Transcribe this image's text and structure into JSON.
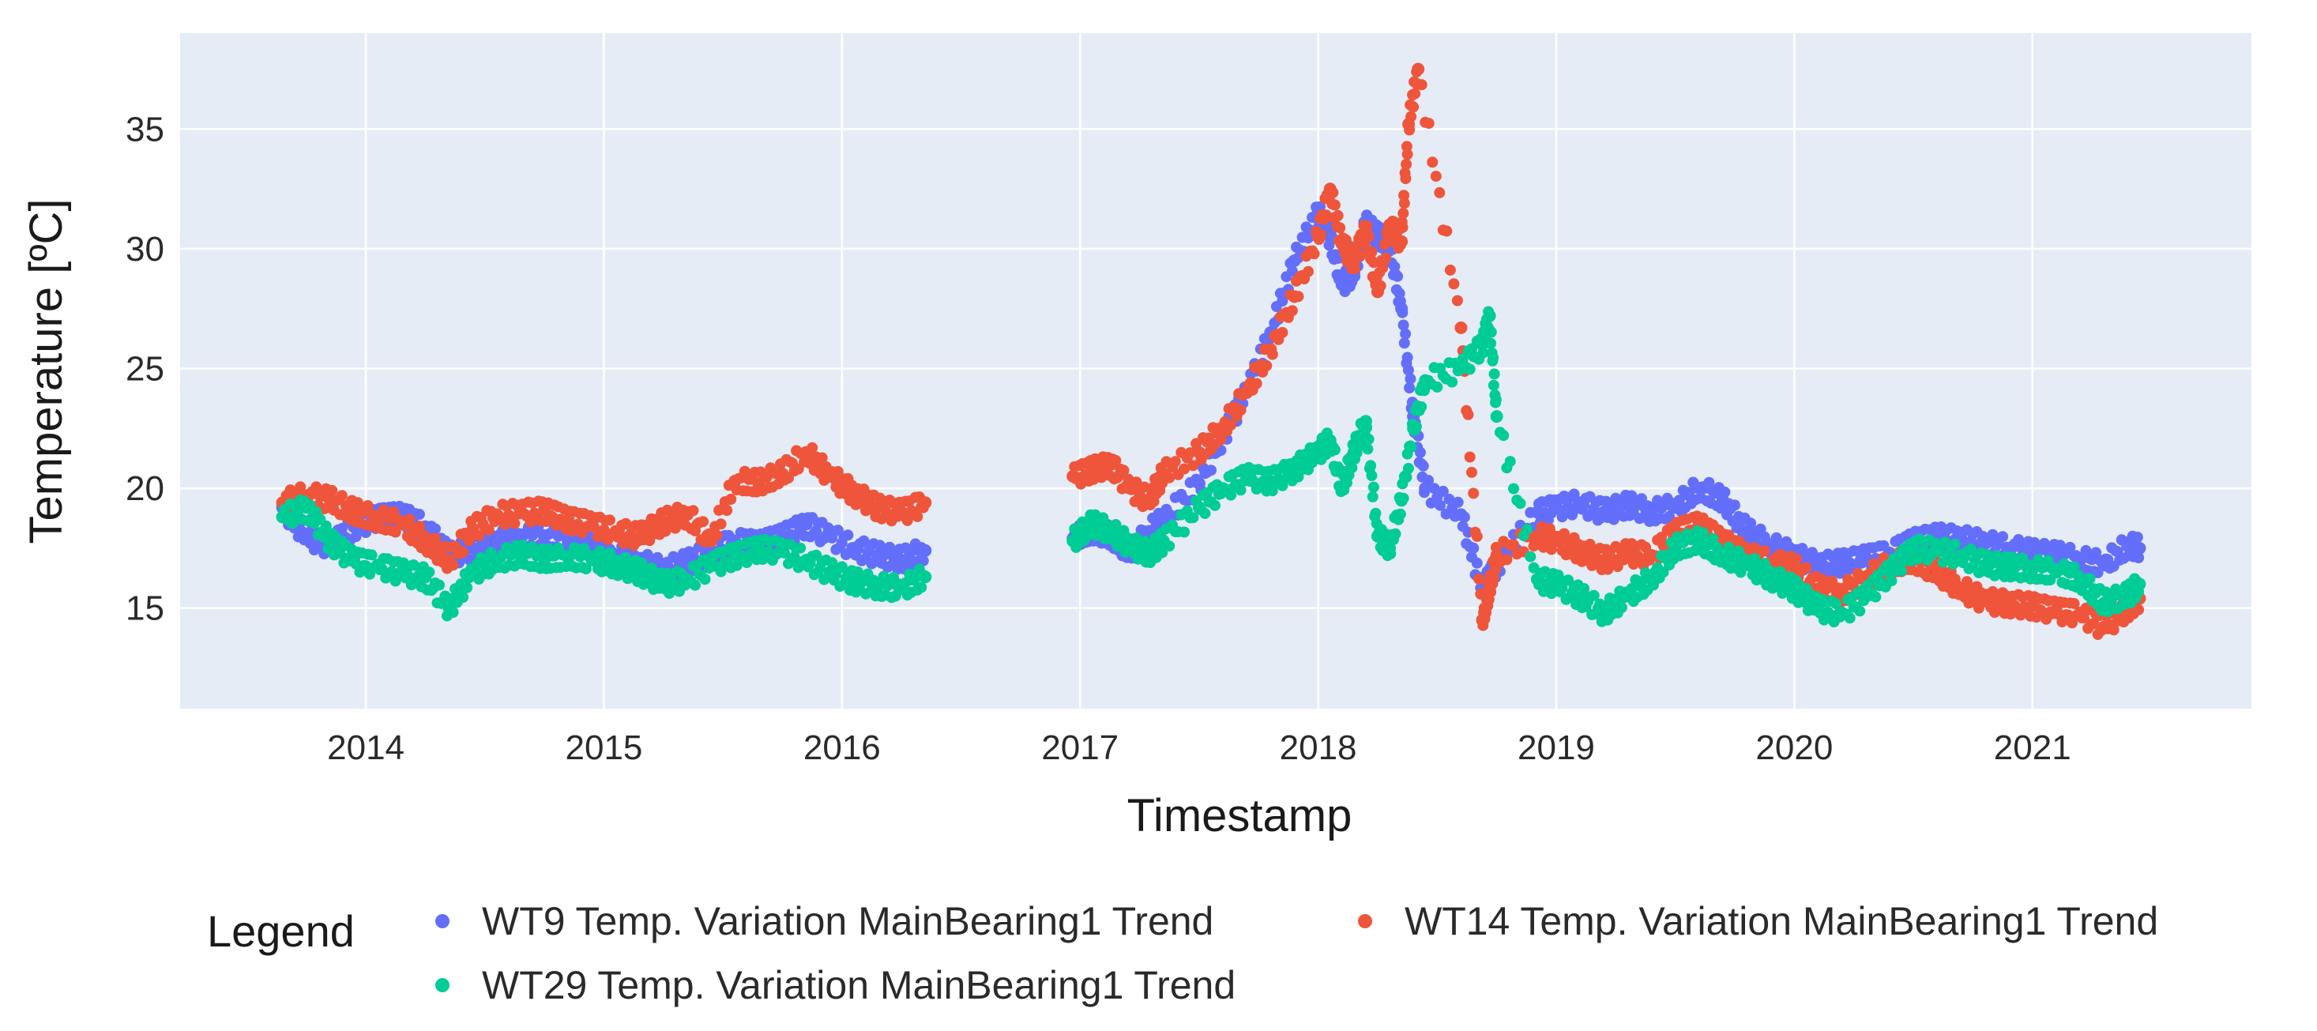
{
  "chart_data": {
    "type": "scatter",
    "title": "",
    "xlabel": "Timestamp",
    "ylabel": "Temperature [ºC]",
    "xlim": [
      2013.22,
      2021.92
    ],
    "ylim": [
      10.8,
      39.0
    ],
    "x_ticks": [
      2014,
      2015,
      2016,
      2017,
      2018,
      2019,
      2020,
      2021
    ],
    "x_tick_labels": [
      "2014",
      "2015",
      "2016",
      "2017",
      "2018",
      "2019",
      "2020",
      "2021"
    ],
    "y_ticks": [
      15,
      20,
      25,
      30,
      35
    ],
    "y_tick_labels": [
      "15",
      "20",
      "25",
      "30",
      "35"
    ],
    "legend_title": "Legend",
    "legend_position": "bottom",
    "grid": true,
    "series": [
      {
        "name": "WT9 Temp. Variation MainBearing1 Trend",
        "color": "#636efa",
        "x": [
          2013.65,
          2013.75,
          2013.85,
          2013.95,
          2014.05,
          2014.15,
          2014.25,
          2014.35,
          2014.45,
          2014.55,
          2014.65,
          2014.75,
          2014.85,
          2014.95,
          2015.05,
          2015.15,
          2015.25,
          2015.35,
          2015.45,
          2015.55,
          2015.65,
          2015.75,
          2015.85,
          2015.95,
          2016.05,
          2016.15,
          2016.25,
          2016.35,
          2016.97,
          2017.05,
          2017.13,
          2017.21,
          2017.29,
          2017.35,
          2017.5,
          2017.6,
          2017.7,
          2017.8,
          2017.9,
          2018.0,
          2018.05,
          2018.1,
          2018.15,
          2018.2,
          2018.25,
          2018.3,
          2018.35,
          2018.4,
          2018.45,
          2018.6,
          2018.69,
          2018.72,
          2018.75,
          2018.92,
          2019.0,
          2019.1,
          2019.2,
          2019.3,
          2019.4,
          2019.5,
          2019.6,
          2019.7,
          2019.8,
          2019.9,
          2020.0,
          2020.1,
          2020.2,
          2020.3,
          2020.4,
          2020.5,
          2020.6,
          2020.7,
          2020.8,
          2020.9,
          2021.0,
          2021.1,
          2021.2,
          2021.3,
          2021.4,
          2021.45
        ],
        "y": [
          19.2,
          18.0,
          17.6,
          18.4,
          18.8,
          18.9,
          18.4,
          17.2,
          17.5,
          17.8,
          17.9,
          18.0,
          17.8,
          17.5,
          17.2,
          16.9,
          16.6,
          16.9,
          17.4,
          17.8,
          17.7,
          18.0,
          18.5,
          18.0,
          17.5,
          17.2,
          17.0,
          17.4,
          17.9,
          18.2,
          18.0,
          17.3,
          18.2,
          18.7,
          20.2,
          22.2,
          24.0,
          26.5,
          29.5,
          31.5,
          30.5,
          28.5,
          29.0,
          31.0,
          30.5,
          30.2,
          27.5,
          23.0,
          20.0,
          18.9,
          15.8,
          16.3,
          16.8,
          19.0,
          19.2,
          19.4,
          19.0,
          19.3,
          19.0,
          19.2,
          20.0,
          19.5,
          18.2,
          17.6,
          17.2,
          16.8,
          16.9,
          17.1,
          17.3,
          17.8,
          18.0,
          17.9,
          17.7,
          17.5,
          17.3,
          17.2,
          17.0,
          16.8,
          17.6,
          17.5
        ]
      },
      {
        "name": "WT14 Temp. Variation MainBearing1 Trend",
        "color": "#ef553b",
        "x": [
          2013.65,
          2013.75,
          2013.85,
          2013.95,
          2014.05,
          2014.15,
          2014.25,
          2014.35,
          2014.45,
          2014.55,
          2014.65,
          2014.75,
          2014.85,
          2014.95,
          2015.05,
          2015.15,
          2015.25,
          2015.35,
          2015.45,
          2015.55,
          2015.65,
          2015.75,
          2015.85,
          2015.95,
          2016.05,
          2016.15,
          2016.25,
          2016.35,
          2016.97,
          2017.05,
          2017.13,
          2017.21,
          2017.29,
          2017.35,
          2017.5,
          2017.6,
          2017.7,
          2017.8,
          2017.9,
          2018.0,
          2018.05,
          2018.1,
          2018.15,
          2018.2,
          2018.25,
          2018.3,
          2018.35,
          2018.38,
          2018.42,
          2018.6,
          2018.69,
          2018.72,
          2018.75,
          2018.92,
          2019.0,
          2019.1,
          2019.2,
          2019.3,
          2019.4,
          2019.5,
          2019.6,
          2019.7,
          2019.8,
          2019.9,
          2020.0,
          2020.1,
          2020.2,
          2020.3,
          2020.4,
          2020.5,
          2020.6,
          2020.7,
          2020.8,
          2020.9,
          2021.0,
          2021.1,
          2021.2,
          2021.3,
          2021.4,
          2021.45
        ],
        "y": [
          19.4,
          19.7,
          19.5,
          19.0,
          18.7,
          18.5,
          17.8,
          17.0,
          18.3,
          18.9,
          19.0,
          19.1,
          18.7,
          18.5,
          18.2,
          18.0,
          18.6,
          18.9,
          17.8,
          20.3,
          20.2,
          20.6,
          21.5,
          20.5,
          19.8,
          19.2,
          19.0,
          19.4,
          20.5,
          20.8,
          21.0,
          20.0,
          19.5,
          20.6,
          21.5,
          22.5,
          24.0,
          25.8,
          28.0,
          30.5,
          32.5,
          30.2,
          29.5,
          30.8,
          28.2,
          31.0,
          30.3,
          35.2,
          37.5,
          26.7,
          14.5,
          15.8,
          17.2,
          18.0,
          17.8,
          17.4,
          17.0,
          17.3,
          17.2,
          18.2,
          18.5,
          17.8,
          17.2,
          16.9,
          16.7,
          15.8,
          15.6,
          16.2,
          16.8,
          17.0,
          16.5,
          15.8,
          15.3,
          15.2,
          15.1,
          14.9,
          14.8,
          14.2,
          15.0,
          15.4
        ]
      },
      {
        "name": "WT29 Temp. Variation MainBearing1 Trend",
        "color": "#00cc96",
        "x": [
          2013.65,
          2013.75,
          2013.85,
          2013.95,
          2014.05,
          2014.15,
          2014.25,
          2014.35,
          2014.45,
          2014.55,
          2014.65,
          2014.75,
          2014.85,
          2014.95,
          2015.05,
          2015.15,
          2015.25,
          2015.35,
          2015.45,
          2015.55,
          2015.65,
          2015.75,
          2015.85,
          2015.95,
          2016.05,
          2016.15,
          2016.25,
          2016.35,
          2016.97,
          2017.05,
          2017.13,
          2017.21,
          2017.29,
          2017.35,
          2017.5,
          2017.6,
          2017.7,
          2017.8,
          2017.9,
          2018.0,
          2018.05,
          2018.1,
          2018.15,
          2018.2,
          2018.25,
          2018.3,
          2018.35,
          2018.4,
          2018.45,
          2018.6,
          2018.69,
          2018.72,
          2018.75,
          2018.92,
          2019.0,
          2019.1,
          2019.2,
          2019.3,
          2019.4,
          2019.5,
          2019.6,
          2019.7,
          2019.8,
          2019.9,
          2020.0,
          2020.1,
          2020.2,
          2020.3,
          2020.4,
          2020.5,
          2020.6,
          2020.7,
          2020.8,
          2020.9,
          2021.0,
          2021.1,
          2021.2,
          2021.3,
          2021.4,
          2021.45
        ],
        "y": [
          18.8,
          19.2,
          17.8,
          17.0,
          16.8,
          16.5,
          16.3,
          15.0,
          16.5,
          17.0,
          17.2,
          17.0,
          17.1,
          17.0,
          16.8,
          16.5,
          16.0,
          16.2,
          16.8,
          17.2,
          17.5,
          17.4,
          17.0,
          16.5,
          16.1,
          15.9,
          15.8,
          16.3,
          17.8,
          18.5,
          18.2,
          17.6,
          17.3,
          17.8,
          19.2,
          20.0,
          20.5,
          20.3,
          20.8,
          21.5,
          22.0,
          20.0,
          21.5,
          22.8,
          18.0,
          17.5,
          19.5,
          22.5,
          24.5,
          25.0,
          26.0,
          27.2,
          23.0,
          16.2,
          16.0,
          15.5,
          14.8,
          15.5,
          16.2,
          17.5,
          17.8,
          17.2,
          16.8,
          16.3,
          15.8,
          15.0,
          14.8,
          15.5,
          16.5,
          17.5,
          17.4,
          17.2,
          16.8,
          16.7,
          16.6,
          16.5,
          16.2,
          15.2,
          15.5,
          16.0
        ]
      }
    ]
  }
}
